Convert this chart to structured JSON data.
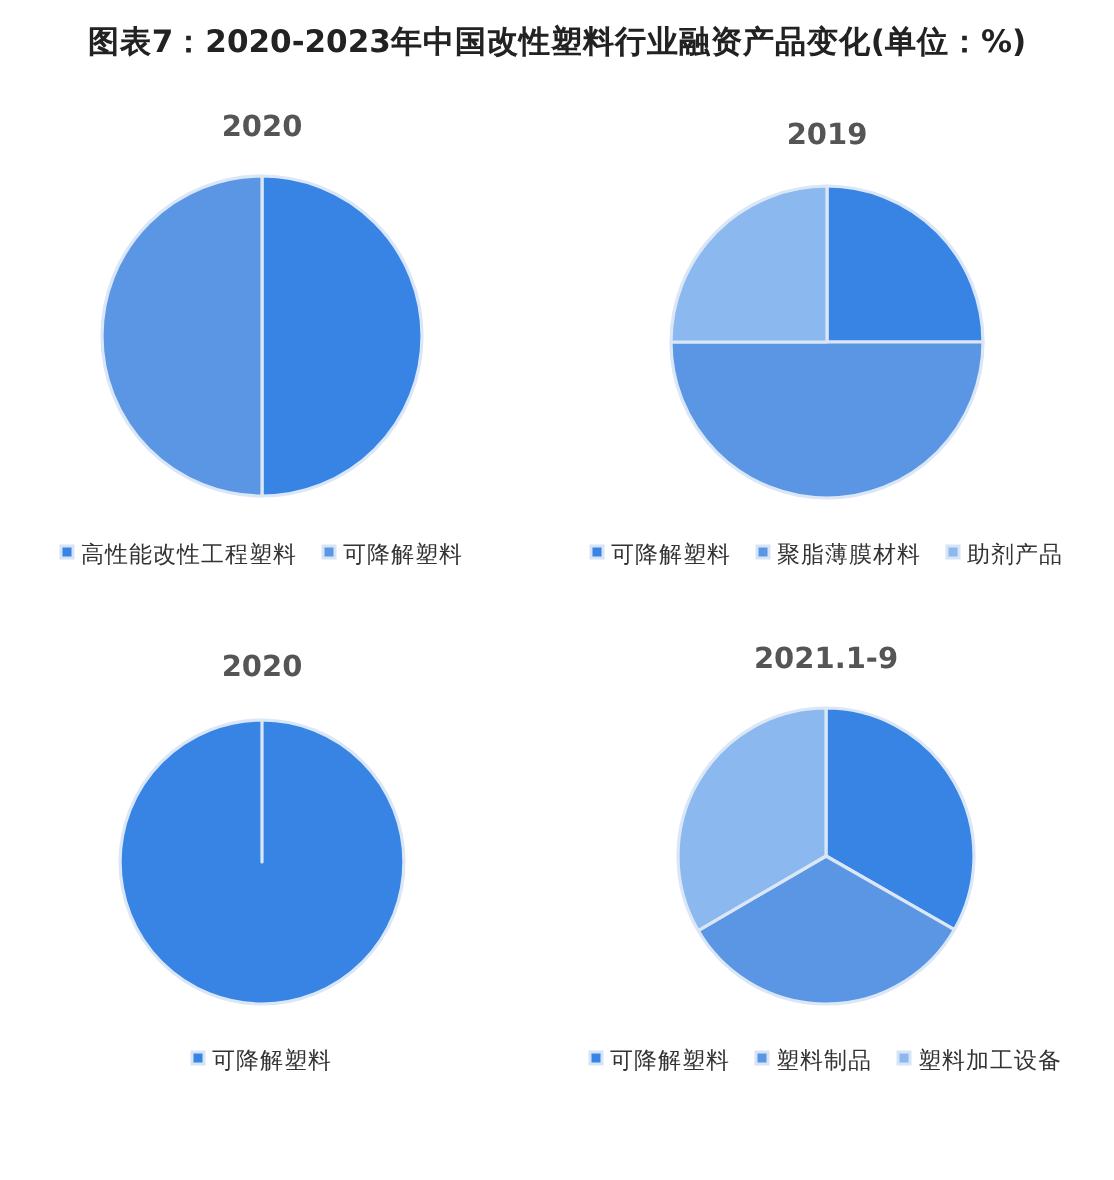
{
  "chart_data": [
    {
      "type": "other",
      "title": "图表7：2020-2023年中国改性塑料行业融资产品变化(单位：%)"
    },
    {
      "type": "pie",
      "title": "2020",
      "categories": [
        "高性能改性工程塑料",
        "可降解塑料"
      ],
      "values": [
        50,
        50
      ],
      "colors": [
        "#3784e4",
        "#5a96e4"
      ],
      "legend": "bottom"
    },
    {
      "type": "pie",
      "title": "2019",
      "categories": [
        "可降解塑料",
        "聚脂薄膜材料",
        "助剂产品"
      ],
      "values": [
        25,
        50,
        25
      ],
      "colors": [
        "#3784e4",
        "#5a96e4",
        "#8cb8f0"
      ],
      "legend": "bottom"
    },
    {
      "type": "pie",
      "title": "2020",
      "categories": [
        "可降解塑料"
      ],
      "values": [
        100
      ],
      "colors": [
        "#3784e4"
      ],
      "legend": "bottom"
    },
    {
      "type": "pie",
      "title": "2021.1-9",
      "categories": [
        "可降解塑料",
        "塑料制品",
        "塑料加工设备"
      ],
      "values": [
        33.3,
        33.3,
        33.4
      ],
      "colors": [
        "#3784e4",
        "#5a96e4",
        "#8cb8f0"
      ],
      "legend": "bottom"
    }
  ]
}
